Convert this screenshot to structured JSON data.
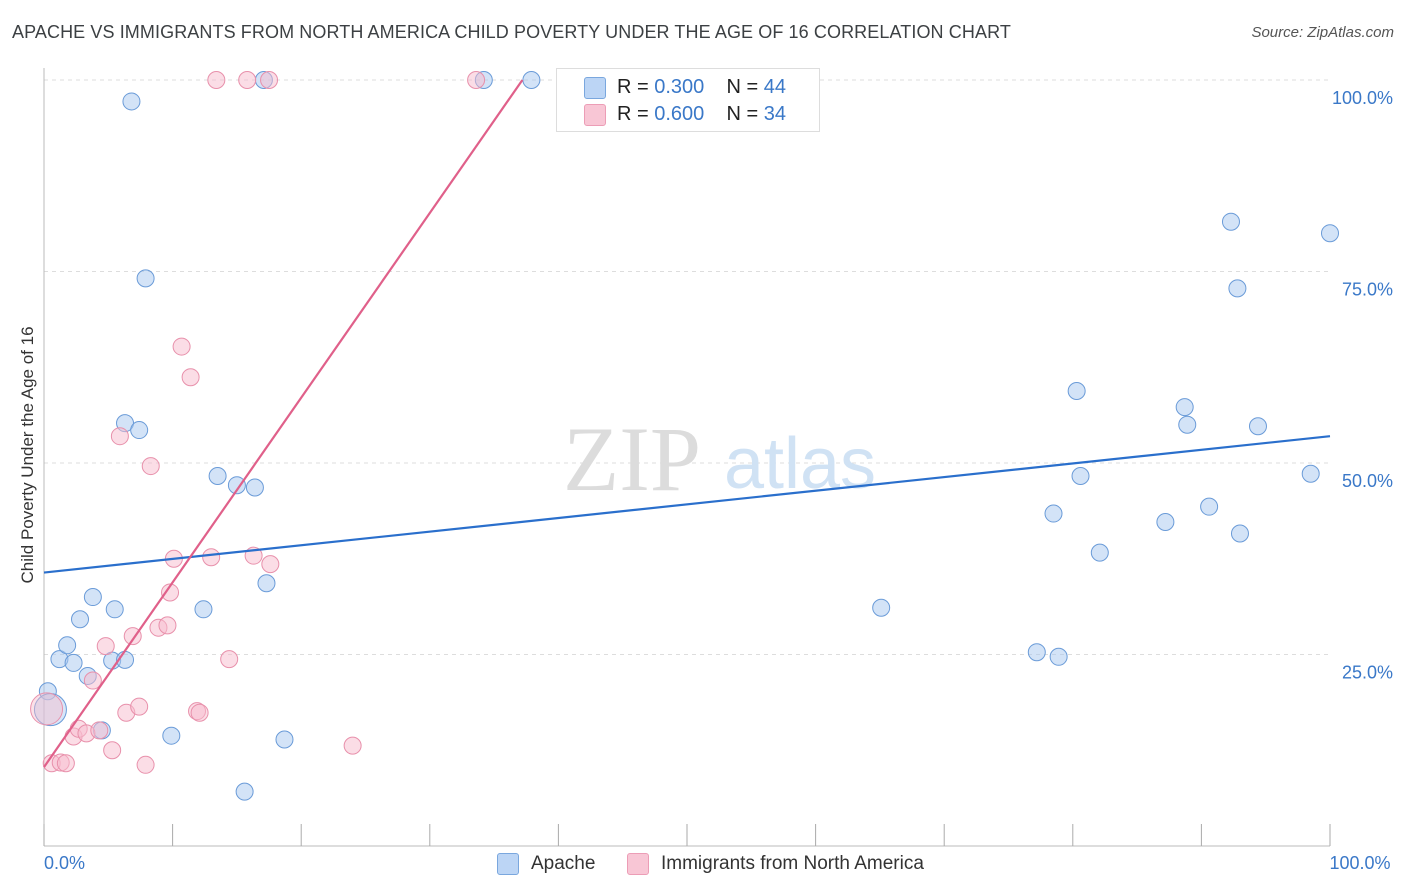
{
  "title": "APACHE VS IMMIGRANTS FROM NORTH AMERICA CHILD POVERTY UNDER THE AGE OF 16 CORRELATION CHART",
  "source": "Source: ZipAtlas.com",
  "watermark": {
    "zip": "ZIP",
    "atlas": "atlas"
  },
  "legend": {
    "apache": {
      "r_label": "R = ",
      "r_value": "0.300",
      "n_label": "N = ",
      "n_value": "44"
    },
    "immigrants": {
      "r_label": "R = ",
      "r_value": "0.600",
      "n_label": "N = ",
      "n_value": "34"
    }
  },
  "colors": {
    "apache_fill": "#a8c8f0",
    "apache_stroke": "#6a9bd8",
    "apache_line": "#2a6fcc",
    "immigrants_fill": "#f7bccd",
    "immigrants_stroke": "#e890ab",
    "immigrants_line": "#e0608a",
    "tick_label": "#3a78c8",
    "grid": "#dddddd"
  },
  "chart_data": {
    "type": "scatter",
    "xlabel": "",
    "ylabel": "Child Poverty Under the Age of 16",
    "xlim": [
      0,
      100
    ],
    "ylim": [
      0,
      100
    ],
    "x_tick_labels": [
      {
        "value": 0,
        "label": "0.0%"
      },
      {
        "value": 100,
        "label": "100.0%"
      }
    ],
    "y_tick_labels": [
      {
        "value": 25,
        "label": "25.0%"
      },
      {
        "value": 50,
        "label": "50.0%"
      },
      {
        "value": 75,
        "label": "75.0%"
      },
      {
        "value": 100,
        "label": "100.0%"
      }
    ],
    "grid": true,
    "legend_position": "top-center",
    "series": [
      {
        "name": "Apache",
        "color": "#a8c8f0",
        "trend": {
          "x": [
            0,
            100
          ],
          "y": [
            35.7,
            53.5
          ]
        },
        "points": [
          [
            0.3,
            20.2
          ],
          [
            0.5,
            17.8
          ],
          [
            1.2,
            24.4
          ],
          [
            1.8,
            26.2
          ],
          [
            2.3,
            23.9
          ],
          [
            2.8,
            29.6
          ],
          [
            3.4,
            22.2
          ],
          [
            3.8,
            32.5
          ],
          [
            4.5,
            15.1
          ],
          [
            5.3,
            24.2
          ],
          [
            5.5,
            30.9
          ],
          [
            6.3,
            24.3
          ],
          [
            6.3,
            55.2
          ],
          [
            6.8,
            97.2
          ],
          [
            7.4,
            54.3
          ],
          [
            7.9,
            74.1
          ],
          [
            9.9,
            14.4
          ],
          [
            12.4,
            30.9
          ],
          [
            13.5,
            48.3
          ],
          [
            15.0,
            47.1
          ],
          [
            15.6,
            7.1
          ],
          [
            16.4,
            46.8
          ],
          [
            17.1,
            100.0
          ],
          [
            17.3,
            34.3
          ],
          [
            18.7,
            13.9
          ],
          [
            34.2,
            100.0
          ],
          [
            37.9,
            100.0
          ],
          [
            65.1,
            31.1
          ],
          [
            77.2,
            25.3
          ],
          [
            78.5,
            43.4
          ],
          [
            78.9,
            24.7
          ],
          [
            80.3,
            59.4
          ],
          [
            80.6,
            48.3
          ],
          [
            82.1,
            38.3
          ],
          [
            87.2,
            42.3
          ],
          [
            88.7,
            57.3
          ],
          [
            88.9,
            55.0
          ],
          [
            90.6,
            44.3
          ],
          [
            92.3,
            81.5
          ],
          [
            92.8,
            72.8
          ],
          [
            93.0,
            40.8
          ],
          [
            94.4,
            54.8
          ],
          [
            98.5,
            48.6
          ],
          [
            100.0,
            80.0
          ]
        ]
      },
      {
        "name": "Immigrants from North America",
        "color": "#f7bccd",
        "trend": {
          "x": [
            0,
            37.2
          ],
          "y": [
            10.3,
            100.0
          ]
        },
        "points": [
          [
            0.2,
            17.9
          ],
          [
            0.6,
            10.8
          ],
          [
            1.3,
            10.9
          ],
          [
            1.7,
            10.8
          ],
          [
            2.3,
            14.3
          ],
          [
            2.7,
            15.3
          ],
          [
            3.3,
            14.7
          ],
          [
            3.8,
            21.6
          ],
          [
            4.3,
            15.1
          ],
          [
            4.8,
            26.1
          ],
          [
            5.3,
            12.5
          ],
          [
            5.9,
            53.5
          ],
          [
            6.4,
            17.4
          ],
          [
            6.9,
            27.4
          ],
          [
            7.4,
            18.2
          ],
          [
            7.9,
            10.6
          ],
          [
            8.3,
            49.6
          ],
          [
            8.9,
            28.5
          ],
          [
            9.6,
            28.8
          ],
          [
            9.8,
            33.1
          ],
          [
            10.1,
            37.5
          ],
          [
            10.7,
            65.2
          ],
          [
            11.4,
            61.2
          ],
          [
            11.9,
            17.6
          ],
          [
            12.1,
            17.4
          ],
          [
            13.0,
            37.7
          ],
          [
            13.4,
            100.0
          ],
          [
            14.4,
            24.4
          ],
          [
            15.8,
            100.0
          ],
          [
            16.3,
            37.9
          ],
          [
            17.5,
            100.0
          ],
          [
            17.6,
            36.8
          ],
          [
            24.0,
            13.1
          ],
          [
            33.6,
            100.0
          ]
        ]
      }
    ]
  }
}
